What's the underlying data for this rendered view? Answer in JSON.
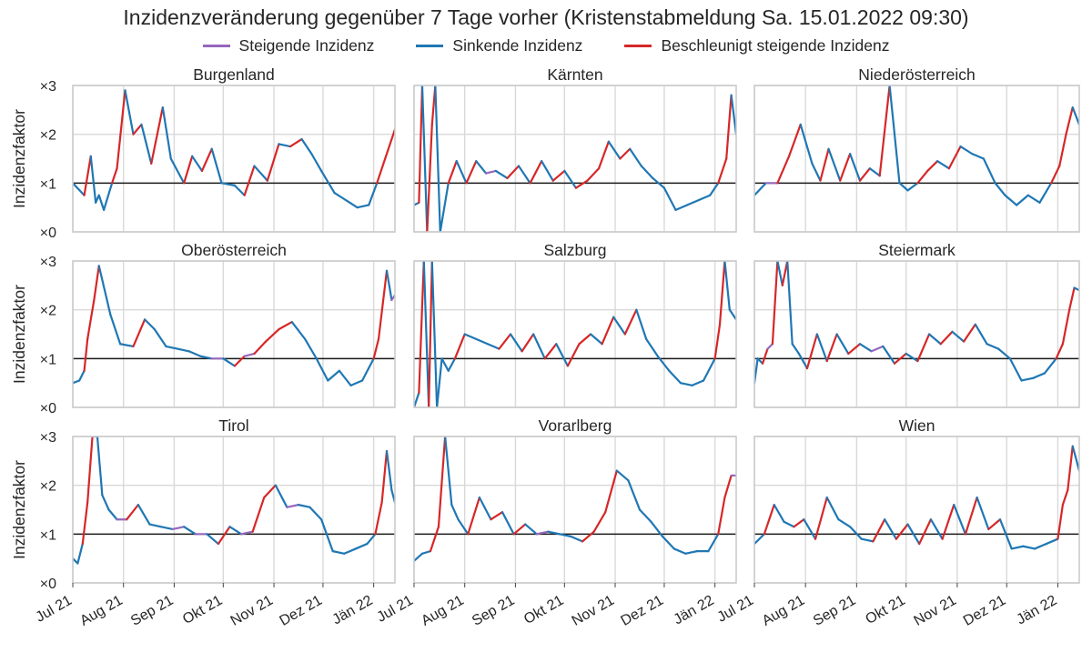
{
  "title": "Inzidenzveränderung gegenüber 7 Tage vorher (Kristenstabmeldung Sa. 15.01.2022 09:30)",
  "legend": [
    {
      "label": "Steigende Inzidenz",
      "color": "#9467bd"
    },
    {
      "label": "Sinkende Inzidenz",
      "color": "#1f77b4"
    },
    {
      "label": "Beschleunigt steigende Inzidenz",
      "color": "#d62728"
    }
  ],
  "chart_data": {
    "type": "line",
    "ylabel": "Inzidenzfaktor",
    "yticks": [
      0,
      1,
      2,
      3
    ],
    "yticklabels": [
      "×0",
      "×1",
      "×2",
      "×3"
    ],
    "ylim": [
      0,
      3
    ],
    "xlim": [
      "2021-07-01",
      "2022-01-14"
    ],
    "xticks": [
      "2021-07-01",
      "2021-08-01",
      "2021-09-01",
      "2021-10-01",
      "2021-11-01",
      "2021-12-01",
      "2022-01-01"
    ],
    "xticklabels": [
      "Jul 21",
      "Aug 21",
      "Sep 21",
      "Okt 21",
      "Nov 21",
      "Dez 21",
      "Jän 22"
    ],
    "reference_line": 1,
    "grid": true,
    "panels": [
      {
        "name": "Burgenland",
        "x": [
          "2021-07-01",
          "2021-07-08",
          "2021-07-12",
          "2021-07-15",
          "2021-07-17",
          "2021-07-20",
          "2021-07-25",
          "2021-07-28",
          "2021-08-02",
          "2021-08-07",
          "2021-08-12",
          "2021-08-18",
          "2021-08-25",
          "2021-08-30",
          "2021-09-07",
          "2021-09-12",
          "2021-09-18",
          "2021-09-24",
          "2021-09-30",
          "2021-10-08",
          "2021-10-14",
          "2021-10-20",
          "2021-10-28",
          "2021-11-04",
          "2021-11-11",
          "2021-11-18",
          "2021-11-24",
          "2021-11-30",
          "2021-12-08",
          "2021-12-15",
          "2021-12-22",
          "2021-12-29",
          "2022-01-03",
          "2022-01-08",
          "2022-01-14"
        ],
        "values": [
          1.0,
          0.75,
          1.55,
          0.6,
          0.75,
          0.45,
          1.0,
          1.3,
          2.9,
          2.0,
          2.2,
          1.4,
          2.55,
          1.5,
          1.0,
          1.55,
          1.25,
          1.7,
          1.0,
          0.95,
          0.75,
          1.35,
          1.05,
          1.8,
          1.75,
          1.9,
          1.6,
          1.25,
          0.8,
          0.65,
          0.5,
          0.55,
          1.0,
          1.5,
          2.1
        ]
      },
      {
        "name": "Kärnten",
        "x": [
          "2021-07-01",
          "2021-07-04",
          "2021-07-06",
          "2021-07-09",
          "2021-07-12",
          "2021-07-14",
          "2021-07-17",
          "2021-07-22",
          "2021-07-27",
          "2021-08-02",
          "2021-08-08",
          "2021-08-14",
          "2021-08-20",
          "2021-08-27",
          "2021-09-03",
          "2021-09-10",
          "2021-09-17",
          "2021-09-24",
          "2021-10-01",
          "2021-10-08",
          "2021-10-15",
          "2021-10-22",
          "2021-10-28",
          "2021-11-04",
          "2021-11-10",
          "2021-11-17",
          "2021-11-24",
          "2021-12-01",
          "2021-12-08",
          "2021-12-15",
          "2021-12-22",
          "2021-12-29",
          "2022-01-03",
          "2022-01-08",
          "2022-01-11",
          "2022-01-14"
        ],
        "values": [
          0.55,
          0.6,
          3.0,
          0.0,
          2.2,
          3.0,
          0.0,
          1.0,
          1.45,
          1.0,
          1.45,
          1.2,
          1.25,
          1.1,
          1.35,
          1.0,
          1.45,
          1.05,
          1.25,
          0.9,
          1.05,
          1.3,
          1.85,
          1.5,
          1.7,
          1.35,
          1.1,
          0.9,
          0.45,
          0.55,
          0.65,
          0.75,
          1.0,
          1.5,
          2.8,
          2.0
        ]
      },
      {
        "name": "Niederösterreich",
        "x": [
          "2021-07-01",
          "2021-07-08",
          "2021-07-15",
          "2021-07-22",
          "2021-07-29",
          "2021-08-05",
          "2021-08-10",
          "2021-08-15",
          "2021-08-22",
          "2021-08-28",
          "2021-09-03",
          "2021-09-09",
          "2021-09-15",
          "2021-09-21",
          "2021-09-27",
          "2021-10-02",
          "2021-10-08",
          "2021-10-14",
          "2021-10-20",
          "2021-10-27",
          "2021-11-03",
          "2021-11-10",
          "2021-11-17",
          "2021-11-24",
          "2021-11-30",
          "2021-12-07",
          "2021-12-14",
          "2021-12-21",
          "2021-12-28",
          "2022-01-02",
          "2022-01-06",
          "2022-01-10",
          "2022-01-14"
        ],
        "values": [
          0.75,
          1.0,
          1.0,
          1.55,
          2.2,
          1.4,
          1.05,
          1.7,
          1.05,
          1.6,
          1.05,
          1.3,
          1.15,
          3.0,
          1.0,
          0.85,
          1.0,
          1.25,
          1.45,
          1.3,
          1.75,
          1.6,
          1.5,
          1.0,
          0.75,
          0.55,
          0.75,
          0.6,
          1.0,
          1.35,
          2.0,
          2.55,
          2.2
        ]
      },
      {
        "name": "Oberösterreich",
        "x": [
          "2021-07-01",
          "2021-07-05",
          "2021-07-08",
          "2021-07-10",
          "2021-07-14",
          "2021-07-17",
          "2021-07-24",
          "2021-07-30",
          "2021-08-07",
          "2021-08-14",
          "2021-08-20",
          "2021-08-27",
          "2021-09-03",
          "2021-09-10",
          "2021-09-17",
          "2021-09-24",
          "2021-10-01",
          "2021-10-08",
          "2021-10-14",
          "2021-10-20",
          "2021-10-27",
          "2021-11-04",
          "2021-11-12",
          "2021-11-20",
          "2021-11-27",
          "2021-12-04",
          "2021-12-11",
          "2021-12-18",
          "2021-12-25",
          "2022-01-01",
          "2022-01-04",
          "2022-01-09",
          "2022-01-12",
          "2022-01-14"
        ],
        "values": [
          0.5,
          0.55,
          0.75,
          1.4,
          2.2,
          2.9,
          1.9,
          1.3,
          1.25,
          1.8,
          1.6,
          1.25,
          1.2,
          1.15,
          1.05,
          1.0,
          1.0,
          0.85,
          1.05,
          1.1,
          1.35,
          1.6,
          1.75,
          1.4,
          1.0,
          0.55,
          0.75,
          0.45,
          0.55,
          1.0,
          1.4,
          2.8,
          2.2,
          2.3
        ]
      },
      {
        "name": "Salzburg",
        "x": [
          "2021-07-01",
          "2021-07-04",
          "2021-07-07",
          "2021-07-10",
          "2021-07-12",
          "2021-07-15",
          "2021-07-18",
          "2021-07-22",
          "2021-07-26",
          "2021-08-01",
          "2021-08-08",
          "2021-08-15",
          "2021-08-22",
          "2021-08-29",
          "2021-09-05",
          "2021-09-12",
          "2021-09-19",
          "2021-09-26",
          "2021-10-03",
          "2021-10-10",
          "2021-10-17",
          "2021-10-24",
          "2021-10-31",
          "2021-11-07",
          "2021-11-14",
          "2021-11-20",
          "2021-11-27",
          "2021-12-04",
          "2021-12-11",
          "2021-12-18",
          "2021-12-25",
          "2022-01-01",
          "2022-01-04",
          "2022-01-07",
          "2022-01-10",
          "2022-01-14"
        ],
        "values": [
          0.0,
          0.3,
          3.0,
          0.0,
          3.0,
          0.0,
          1.0,
          0.75,
          1.0,
          1.5,
          1.4,
          1.3,
          1.2,
          1.5,
          1.15,
          1.5,
          1.0,
          1.3,
          0.85,
          1.3,
          1.5,
          1.3,
          1.85,
          1.5,
          2.0,
          1.4,
          1.05,
          0.75,
          0.5,
          0.45,
          0.55,
          1.0,
          1.7,
          3.0,
          2.0,
          1.8
        ]
      },
      {
        "name": "Steiermark",
        "x": [
          "2021-07-01",
          "2021-07-03",
          "2021-07-06",
          "2021-07-09",
          "2021-07-12",
          "2021-07-15",
          "2021-07-18",
          "2021-07-21",
          "2021-07-24",
          "2021-07-28",
          "2021-08-02",
          "2021-08-08",
          "2021-08-14",
          "2021-08-20",
          "2021-08-27",
          "2021-09-03",
          "2021-09-10",
          "2021-09-17",
          "2021-09-24",
          "2021-10-01",
          "2021-10-08",
          "2021-10-15",
          "2021-10-22",
          "2021-10-29",
          "2021-11-05",
          "2021-11-12",
          "2021-11-19",
          "2021-11-26",
          "2021-12-03",
          "2021-12-10",
          "2021-12-17",
          "2021-12-24",
          "2021-12-31",
          "2022-01-04",
          "2022-01-08",
          "2022-01-11",
          "2022-01-14"
        ],
        "values": [
          0.5,
          1.0,
          0.9,
          1.2,
          1.3,
          3.0,
          2.5,
          3.0,
          1.3,
          1.1,
          0.8,
          1.5,
          0.95,
          1.5,
          1.1,
          1.3,
          1.15,
          1.25,
          0.9,
          1.1,
          0.95,
          1.5,
          1.3,
          1.55,
          1.35,
          1.7,
          1.3,
          1.2,
          1.0,
          0.55,
          0.6,
          0.7,
          1.0,
          1.3,
          2.0,
          2.45,
          2.4
        ]
      },
      {
        "name": "Tirol",
        "x": [
          "2021-07-01",
          "2021-07-04",
          "2021-07-07",
          "2021-07-10",
          "2021-07-13",
          "2021-07-16",
          "2021-07-19",
          "2021-07-23",
          "2021-07-28",
          "2021-08-03",
          "2021-08-10",
          "2021-08-17",
          "2021-08-24",
          "2021-08-31",
          "2021-09-07",
          "2021-09-14",
          "2021-09-21",
          "2021-09-28",
          "2021-10-05",
          "2021-10-12",
          "2021-10-19",
          "2021-10-26",
          "2021-11-02",
          "2021-11-09",
          "2021-11-16",
          "2021-11-23",
          "2021-11-30",
          "2021-12-07",
          "2021-12-14",
          "2021-12-21",
          "2021-12-28",
          "2022-01-02",
          "2022-01-06",
          "2022-01-09",
          "2022-01-12",
          "2022-01-14"
        ],
        "values": [
          0.5,
          0.4,
          0.8,
          1.65,
          3.0,
          3.0,
          1.8,
          1.5,
          1.3,
          1.3,
          1.6,
          1.2,
          1.15,
          1.1,
          1.15,
          1.0,
          1.0,
          0.8,
          1.15,
          1.0,
          1.05,
          1.75,
          2.0,
          1.55,
          1.6,
          1.55,
          1.3,
          0.65,
          0.6,
          0.7,
          0.8,
          1.0,
          1.65,
          2.7,
          1.9,
          1.65
        ]
      },
      {
        "name": "Vorarlberg",
        "x": [
          "2021-07-01",
          "2021-07-06",
          "2021-07-11",
          "2021-07-16",
          "2021-07-20",
          "2021-07-24",
          "2021-07-28",
          "2021-08-03",
          "2021-08-10",
          "2021-08-17",
          "2021-08-24",
          "2021-08-31",
          "2021-09-07",
          "2021-09-14",
          "2021-09-21",
          "2021-09-28",
          "2021-10-05",
          "2021-10-12",
          "2021-10-19",
          "2021-10-26",
          "2021-11-02",
          "2021-11-09",
          "2021-11-16",
          "2021-11-23",
          "2021-11-30",
          "2021-12-07",
          "2021-12-14",
          "2021-12-21",
          "2021-12-28",
          "2022-01-03",
          "2022-01-07",
          "2022-01-11",
          "2022-01-14"
        ],
        "values": [
          0.45,
          0.6,
          0.65,
          1.15,
          3.0,
          1.6,
          1.3,
          1.0,
          1.75,
          1.3,
          1.45,
          1.0,
          1.2,
          1.0,
          1.05,
          1.0,
          0.95,
          0.85,
          1.05,
          1.45,
          2.3,
          2.1,
          1.5,
          1.25,
          0.95,
          0.7,
          0.6,
          0.65,
          0.65,
          1.0,
          1.75,
          2.2,
          2.2
        ]
      },
      {
        "name": "Wien",
        "x": [
          "2021-07-01",
          "2021-07-07",
          "2021-07-13",
          "2021-07-19",
          "2021-07-25",
          "2021-07-31",
          "2021-08-07",
          "2021-08-14",
          "2021-08-21",
          "2021-08-28",
          "2021-09-04",
          "2021-09-11",
          "2021-09-18",
          "2021-09-25",
          "2021-10-02",
          "2021-10-09",
          "2021-10-16",
          "2021-10-23",
          "2021-10-30",
          "2021-11-06",
          "2021-11-13",
          "2021-11-20",
          "2021-11-27",
          "2021-12-04",
          "2021-12-11",
          "2021-12-18",
          "2021-12-25",
          "2022-01-01",
          "2022-01-04",
          "2022-01-07",
          "2022-01-10",
          "2022-01-14"
        ],
        "values": [
          0.8,
          1.0,
          1.6,
          1.25,
          1.15,
          1.3,
          0.9,
          1.75,
          1.3,
          1.15,
          0.9,
          0.85,
          1.3,
          0.9,
          1.2,
          0.8,
          1.3,
          0.9,
          1.6,
          1.0,
          1.75,
          1.1,
          1.3,
          0.7,
          0.75,
          0.7,
          0.8,
          0.9,
          1.6,
          1.9,
          2.8,
          2.3
        ]
      }
    ]
  }
}
